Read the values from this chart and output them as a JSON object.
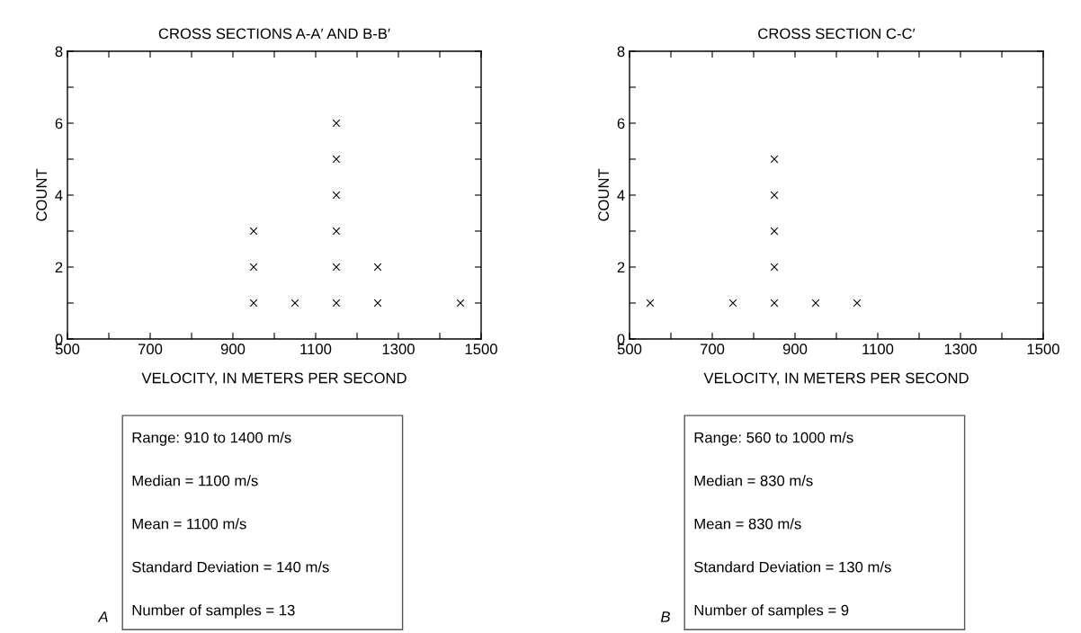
{
  "chart_data": [
    {
      "type": "scatter",
      "title": "CROSS SECTIONS A-A′ AND B-B′",
      "xlabel": "VELOCITY, IN METERS PER SECOND",
      "ylabel": "COUNT",
      "x": [
        950,
        950,
        950,
        1050,
        1150,
        1150,
        1150,
        1150,
        1150,
        1150,
        1250,
        1250,
        1450
      ],
      "values": [
        1,
        2,
        3,
        1,
        1,
        2,
        3,
        4,
        5,
        6,
        1,
        2,
        1
      ],
      "color": "#000000",
      "marker": "cross",
      "xlim": [
        500,
        1500
      ],
      "xticks": [
        500,
        {
          "value": 600,
          "label": null
        },
        700,
        {
          "value": 800,
          "label": null
        },
        900,
        {
          "value": 1000,
          "label": null
        },
        1100,
        {
          "value": 1200,
          "label": null
        },
        1300,
        {
          "value": 1400,
          "label": null
        },
        1500
      ],
      "ylim": [
        0,
        8
      ],
      "yticks": [
        0,
        {
          "value": 1,
          "label": null
        },
        2,
        {
          "value": 3,
          "label": null
        },
        4,
        {
          "value": 5,
          "label": null
        },
        6,
        {
          "value": 7,
          "label": null
        },
        8
      ],
      "grid": false,
      "legend": false,
      "annotations": [
        "Range: 910 to 1400 m/s",
        "Median = 1100 m/s",
        "Mean = 1100 m/s",
        "Standard Deviation = 140 m/s",
        "Number of samples = 13",
        "A"
      ]
    },
    {
      "type": "scatter",
      "title": "CROSS SECTION C-C′",
      "xlabel": "VELOCITY, IN METERS PER SECOND",
      "ylabel": "COUNT",
      "x": [
        550,
        750,
        850,
        850,
        850,
        850,
        850,
        950,
        1050
      ],
      "values": [
        1,
        1,
        1,
        2,
        3,
        4,
        5,
        1,
        1
      ],
      "color": "#000000",
      "marker": "cross",
      "xlim": [
        500,
        1500
      ],
      "xticks": [
        500,
        {
          "value": 600,
          "label": null
        },
        700,
        {
          "value": 800,
          "label": null
        },
        900,
        {
          "value": 1000,
          "label": null
        },
        1100,
        {
          "value": 1200,
          "label": null
        },
        1300,
        {
          "value": 1400,
          "label": null
        },
        1500
      ],
      "ylim": [
        0,
        8
      ],
      "yticks": [
        0,
        {
          "value": 1,
          "label": null
        },
        2,
        {
          "value": 3,
          "label": null
        },
        4,
        {
          "value": 5,
          "label": null
        },
        6,
        {
          "value": 7,
          "label": null
        },
        8
      ],
      "grid": false,
      "legend": false,
      "annotations": [
        "Range: 560 to 1000 m/s",
        "Median = 830 m/s",
        "Mean = 830 m/s",
        "Standard Deviation = 130 m/s",
        "Number of samples = 9",
        "B"
      ]
    }
  ]
}
